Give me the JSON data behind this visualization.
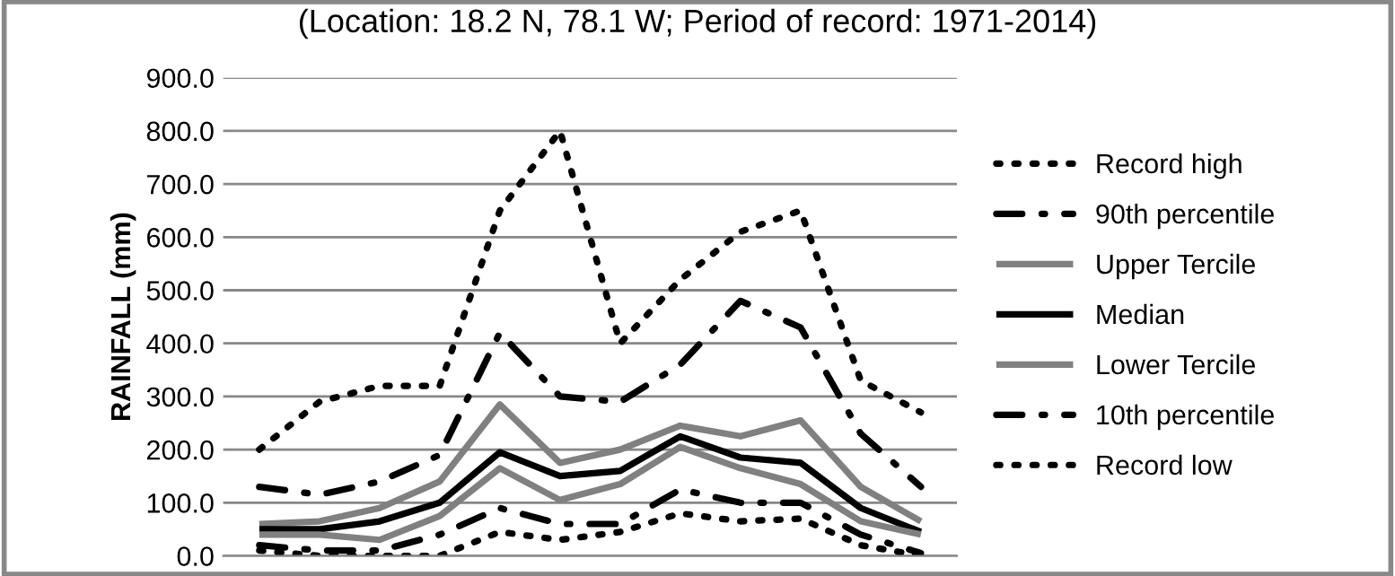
{
  "chart_data": {
    "type": "line",
    "subtitle": "(Location: 18.2 N, 78.1 W; Period of record: 1971-2014)",
    "ylabel": "RAINFALL (mm)",
    "categories": [
      null,
      null,
      null,
      null,
      null,
      null,
      null,
      null,
      null,
      null,
      null,
      null
    ],
    "ylim": [
      0,
      900
    ],
    "yticks": [
      {
        "value": 0,
        "label": "0.0"
      },
      {
        "value": 100,
        "label": "100.0"
      },
      {
        "value": 200,
        "label": "200.0"
      },
      {
        "value": 300,
        "label": "300.0"
      },
      {
        "value": 400,
        "label": "400.0"
      },
      {
        "value": 500,
        "label": "500.0"
      },
      {
        "value": 600,
        "label": "600.0"
      },
      {
        "value": 700,
        "label": "700.0"
      },
      {
        "value": 800,
        "label": "800.0"
      },
      {
        "value": 900,
        "label": "900.0"
      }
    ],
    "grid": "y",
    "legend": "right",
    "series": [
      {
        "name": "Record high",
        "color": "#000000",
        "line_style": "dotted",
        "values": [
          200,
          290,
          320,
          320,
          650,
          800,
          400,
          520,
          610,
          650,
          330,
          270
        ]
      },
      {
        "name": "90th percentile",
        "color": "#000000",
        "line_style": "dashdot",
        "values": [
          130,
          115,
          140,
          190,
          420,
          300,
          290,
          360,
          480,
          430,
          230,
          130
        ]
      },
      {
        "name": "Upper Tercile",
        "color": "#808080",
        "line_style": "solid",
        "values": [
          60,
          65,
          90,
          140,
          285,
          175,
          200,
          245,
          225,
          255,
          130,
          65
        ]
      },
      {
        "name": "Median",
        "color": "#000000",
        "line_style": "solid",
        "values": [
          50,
          50,
          65,
          100,
          195,
          150,
          160,
          225,
          185,
          175,
          90,
          45
        ]
      },
      {
        "name": "Lower Tercile",
        "color": "#808080",
        "line_style": "solid",
        "values": [
          40,
          40,
          30,
          75,
          165,
          105,
          135,
          205,
          165,
          135,
          65,
          40
        ]
      },
      {
        "name": "10th percentile",
        "color": "#000000",
        "line_style": "dashdot",
        "values": [
          20,
          10,
          10,
          40,
          90,
          60,
          60,
          125,
          100,
          100,
          40,
          5
        ]
      },
      {
        "name": "Record low",
        "color": "#000000",
        "line_style": "dotted",
        "values": [
          10,
          0,
          0,
          0,
          45,
          30,
          45,
          80,
          65,
          70,
          20,
          0
        ]
      }
    ]
  }
}
